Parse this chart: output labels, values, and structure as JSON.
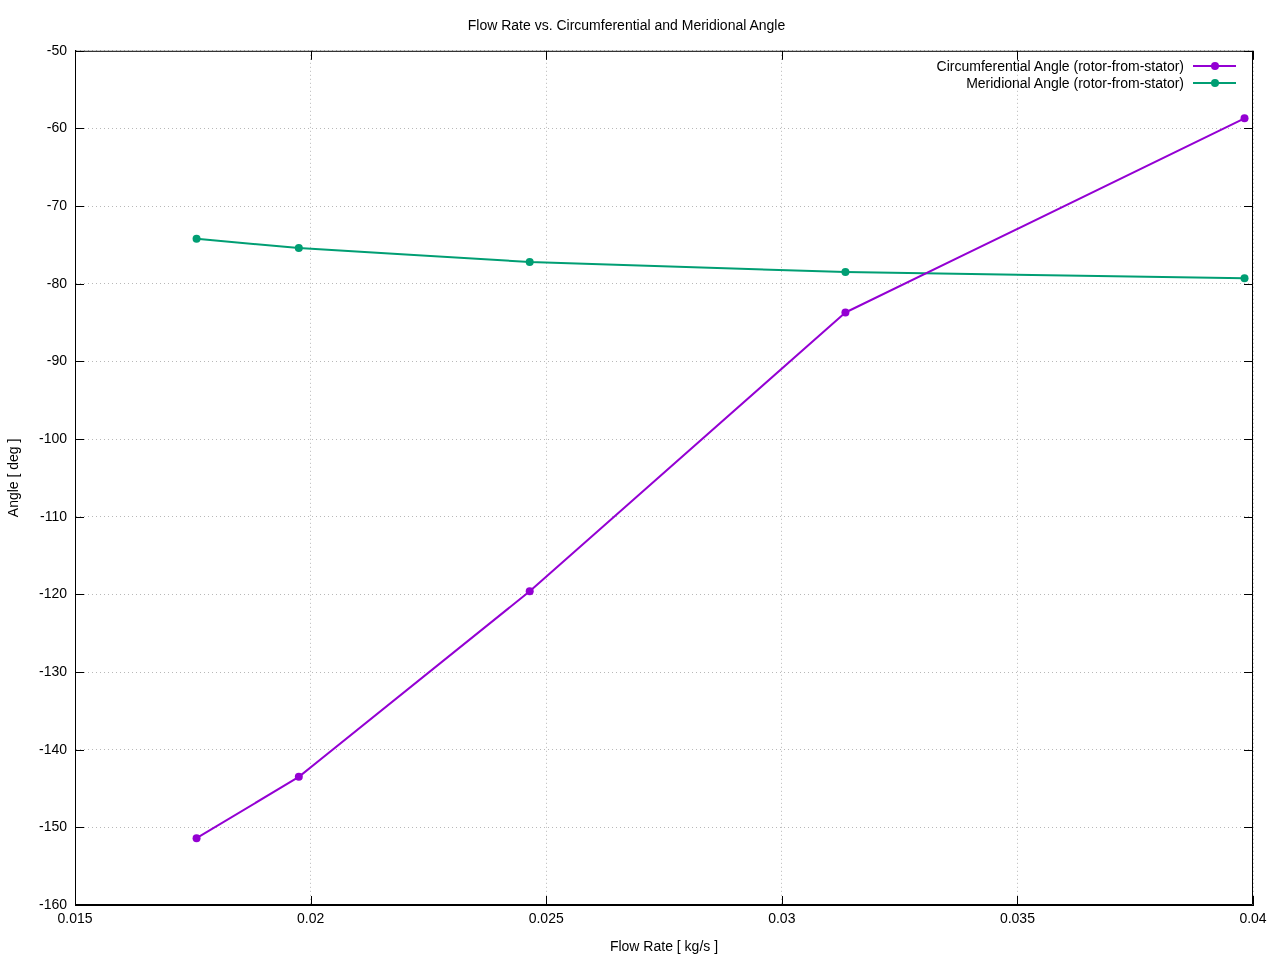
{
  "chart_data": {
    "type": "line",
    "title": "Flow Rate vs. Circumferential and Meridional Angle",
    "xlabel": "Flow Rate [ kg/s ]",
    "ylabel": "Angle [ deg ]",
    "x": [
      0.01758,
      0.01975,
      0.02465,
      0.03135,
      0.03982
    ],
    "series": [
      {
        "name": "Circumferential Angle (rotor-from-stator)",
        "color": "#9400d3",
        "values": [
          -151.4,
          -143.5,
          -119.6,
          -83.7,
          -58.7
        ]
      },
      {
        "name": "Meridional Angle (rotor-from-stator)",
        "color": "#009e73",
        "values": [
          -74.2,
          -75.4,
          -77.2,
          -78.5,
          -79.3
        ]
      }
    ],
    "xlim": [
      0.015,
      0.04
    ],
    "xticks": [
      0.015,
      0.02,
      0.025,
      0.03,
      0.035,
      0.04
    ],
    "ylim": [
      -160,
      -50
    ],
    "yticks": [
      -160,
      -150,
      -140,
      -130,
      -120,
      -110,
      -100,
      -90,
      -80,
      -70,
      -60,
      -50
    ],
    "grid": true,
    "legend": "top right",
    "marker": "circle",
    "line_style": "solid"
  }
}
